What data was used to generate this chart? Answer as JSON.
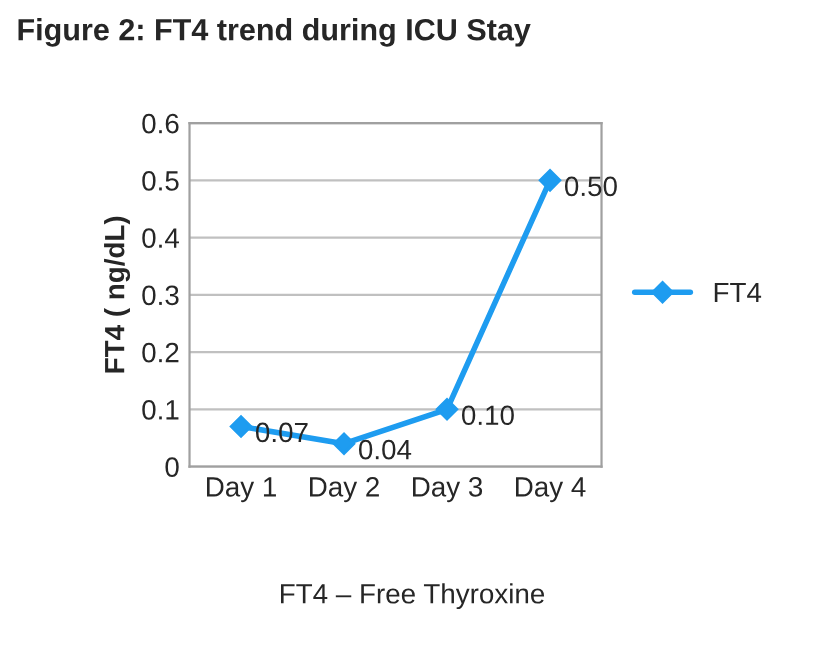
{
  "chart_data": {
    "type": "line",
    "title": "Figure 2: FT4 trend during ICU Stay",
    "ylabel": "FT4 ( ng/dL)",
    "categories": [
      "Day 1",
      "Day 2",
      "Day 3",
      "Day 4"
    ],
    "series": [
      {
        "name": "FT4",
        "color": "#1e9cf0",
        "values": [
          0.07,
          0.04,
          0.1,
          0.5
        ],
        "value_labels": [
          "0.07",
          "0.04",
          "0.10",
          "0.50"
        ]
      }
    ],
    "ylim": [
      0,
      0.6
    ],
    "yticks": [
      0,
      0.1,
      0.2,
      0.3,
      0.4,
      0.5,
      0.6
    ],
    "grid": "y",
    "legend": "right",
    "marker": "diamond",
    "line_style": "solid",
    "annotations": [
      "FT4 – Free Thyroxine"
    ]
  }
}
